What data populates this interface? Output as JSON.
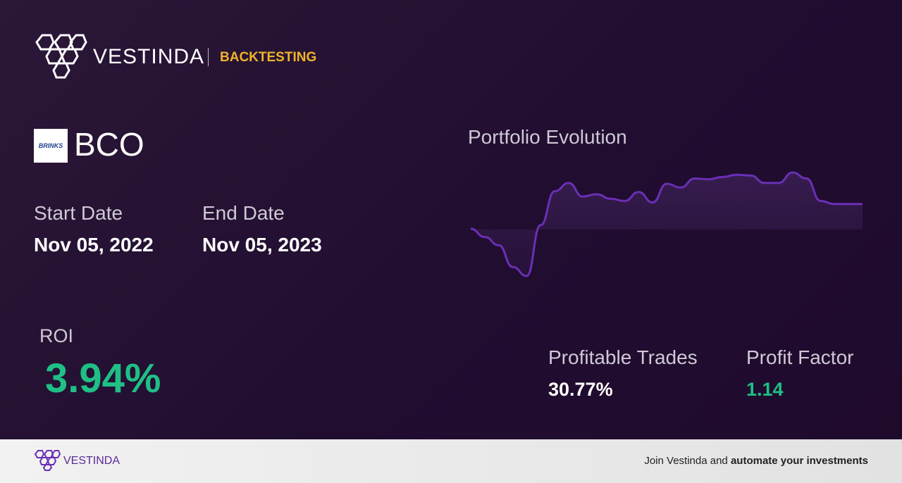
{
  "header": {
    "brand": "VESTINDA",
    "section": "BACKTESTING"
  },
  "ticker": {
    "logo_text": "BRINKS",
    "symbol": "BCO"
  },
  "dates": {
    "start_label": "Start Date",
    "start": "Nov 05, 2022",
    "end_label": "End Date",
    "end": "Nov 05, 2023"
  },
  "roi": {
    "label": "ROI",
    "value": "3.94%"
  },
  "stats": [
    {
      "label": "Profitable Trades",
      "value": "30.77%"
    },
    {
      "label": "Profit Factor",
      "value": "1.14"
    }
  ],
  "chart_data": {
    "type": "line",
    "title": "Portfolio Evolution",
    "color": "#6a2fb5",
    "values": [
      1,
      -10,
      -21,
      -50,
      -62,
      6,
      51,
      62,
      44,
      47,
      41,
      38,
      50,
      36,
      61,
      56,
      68,
      67,
      70,
      73,
      72,
      62,
      62,
      76,
      68,
      38,
      34,
      34,
      34
    ]
  },
  "footer": {
    "brand": "VESTINDA",
    "cta_prefix": "Join Vestinda and",
    "cta_bold": "automate your investments"
  }
}
